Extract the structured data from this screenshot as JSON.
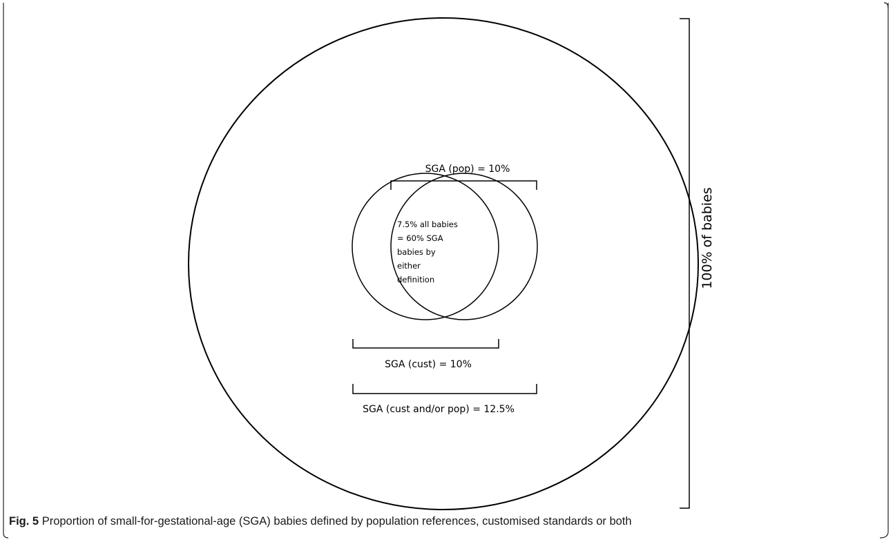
{
  "diagram": {
    "labels": {
      "population": "SGA (pop) = 10%",
      "customised": "SGA (cust) = 10%",
      "combined": "SGA (cust and/or pop) = 12.5%",
      "total": "100% of babies"
    },
    "overlap_text": [
      "7.5% all babies",
      "= 60% SGA",
      "babies by",
      "either",
      "definition"
    ]
  },
  "caption": {
    "label": "Fig. 5",
    "text": "Proportion of small-for-gestational-age (SGA) babies defined by population references, customised standards or both"
  }
}
